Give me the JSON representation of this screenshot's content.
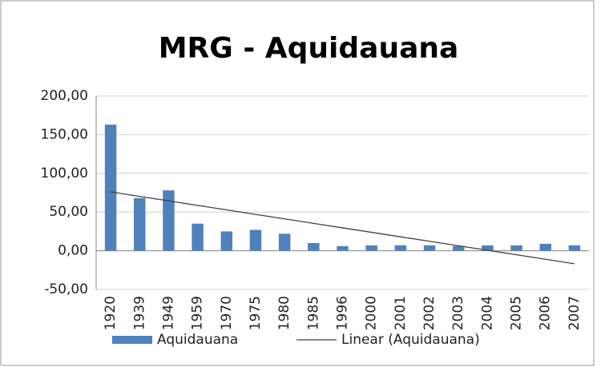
{
  "chart_data": {
    "type": "bar",
    "title": "MRG - Aquidauana",
    "categories": [
      "1920",
      "1939",
      "1949",
      "1959",
      "1970",
      "1975",
      "1980",
      "1985",
      "1996",
      "2000",
      "2001",
      "2002",
      "2003",
      "2004",
      "2005",
      "2006",
      "2007"
    ],
    "series": [
      {
        "name": "Aquidauana",
        "type": "bar",
        "color": "#4f81bd",
        "values": [
          163,
          68,
          78,
          35,
          25,
          27,
          22,
          10,
          6,
          7,
          7,
          7,
          6,
          7,
          7,
          9,
          7
        ]
      },
      {
        "name": "Linear (Aquidauana)",
        "type": "line",
        "color": "#404040",
        "values": [
          76,
          70.2,
          64.4,
          58.6,
          52.8,
          47,
          41.2,
          35.4,
          29.6,
          23.8,
          18,
          12.2,
          6.4,
          0.6,
          -5.2,
          -11,
          -16.8
        ]
      }
    ],
    "ylim": [
      -50,
      200
    ],
    "yticks": [
      {
        "value": -50,
        "label": "-50,00"
      },
      {
        "value": 0,
        "label": "0,00"
      },
      {
        "value": 50,
        "label": "50,00"
      },
      {
        "value": 100,
        "label": "100,00"
      },
      {
        "value": 150,
        "label": "150,00"
      },
      {
        "value": 200,
        "label": "200,00"
      }
    ],
    "grid": true,
    "legend": "bottom"
  }
}
